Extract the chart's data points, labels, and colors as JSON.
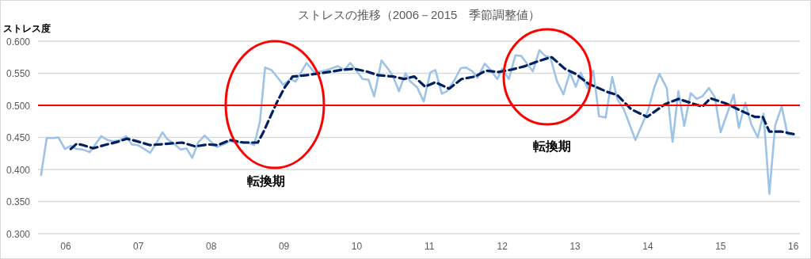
{
  "chart_data": {
    "type": "line",
    "title": "ストレスの推移（2006－2015　季節調整値）",
    "ylabel": "ストレス度",
    "xlim": [
      2005.62,
      2016.09
    ],
    "xticks": [
      {
        "value": 2006,
        "label": "06"
      },
      {
        "value": 2007,
        "label": "07"
      },
      {
        "value": 2008,
        "label": "08"
      },
      {
        "value": 2009,
        "label": "09"
      },
      {
        "value": 2010,
        "label": "10"
      },
      {
        "value": 2011,
        "label": "11"
      },
      {
        "value": 2012,
        "label": "12"
      },
      {
        "value": 2013,
        "label": "13"
      },
      {
        "value": 2014,
        "label": "14"
      },
      {
        "value": 2015,
        "label": "15"
      },
      {
        "value": 2016,
        "label": "16"
      }
    ],
    "ylim": [
      0.3,
      0.6
    ],
    "yticks": [
      {
        "value": 0.3,
        "label": "0.300"
      },
      {
        "value": 0.35,
        "label": "0.350"
      },
      {
        "value": 0.4,
        "label": "0.400"
      },
      {
        "value": 0.45,
        "label": "0.450"
      },
      {
        "value": 0.5,
        "label": "0.500"
      },
      {
        "value": 0.55,
        "label": "0.550"
      },
      {
        "value": 0.6,
        "label": "0.600"
      }
    ],
    "grid": "y",
    "series": [
      {
        "color": "#9dc3e6",
        "line_style": "solid",
        "x": [
          2005.66,
          2005.74,
          2005.84,
          2005.9,
          2005.99,
          2006.07,
          2006.15,
          2006.24,
          2006.33,
          2006.4,
          2006.49,
          2006.57,
          2006.65,
          2006.75,
          2006.83,
          2006.91,
          2006.99,
          2007.08,
          2007.16,
          2007.24,
          2007.33,
          2007.4,
          2007.49,
          2007.58,
          2007.66,
          2007.74,
          2007.82,
          2007.91,
          2007.99,
          2008.08,
          2008.17,
          2008.26,
          2008.34,
          2008.43,
          2008.52,
          2008.59,
          2008.67,
          2008.74,
          2008.83,
          2008.9,
          2008.99,
          2009.09,
          2009.16,
          2009.31,
          2009.42,
          2009.59,
          2009.74,
          2009.83,
          2009.91,
          2009.99,
          2010.08,
          2010.16,
          2010.24,
          2010.34,
          2010.43,
          2010.5,
          2010.58,
          2010.67,
          2010.73,
          2010.83,
          2010.92,
          2011.01,
          2011.08,
          2011.17,
          2011.24,
          2011.33,
          2011.43,
          2011.5,
          2011.59,
          2011.66,
          2011.76,
          2011.84,
          2011.93,
          2012.0,
          2012.09,
          2012.18,
          2012.26,
          2012.42,
          2012.51,
          2012.59,
          2012.66,
          2012.75,
          2012.84,
          2012.93,
          2013.01,
          2013.08,
          2013.17,
          2013.25,
          2013.33,
          2013.42,
          2013.51,
          2013.58,
          2013.67,
          2013.83,
          2014.0,
          2014.09,
          2014.16,
          2014.26,
          2014.34,
          2014.42,
          2014.5,
          2014.59,
          2014.67,
          2014.75,
          2014.84,
          2014.92,
          2015.0,
          2015.09,
          2015.18,
          2015.25,
          2015.34,
          2015.42,
          2015.51,
          2015.59,
          2015.67,
          2015.75,
          2015.84,
          2015.92,
          2016.01
        ],
        "values": [
          0.39,
          0.449,
          0.449,
          0.45,
          0.432,
          0.437,
          0.432,
          0.431,
          0.427,
          0.438,
          0.452,
          0.446,
          0.444,
          0.446,
          0.452,
          0.439,
          0.438,
          0.432,
          0.426,
          0.44,
          0.458,
          0.447,
          0.44,
          0.431,
          0.433,
          0.418,
          0.442,
          0.453,
          0.444,
          0.435,
          0.439,
          0.445,
          0.441,
          0.443,
          0.442,
          0.438,
          0.475,
          0.559,
          0.555,
          0.545,
          0.532,
          0.541,
          0.537,
          0.566,
          0.551,
          0.555,
          0.561,
          0.555,
          0.566,
          0.555,
          0.541,
          0.54,
          0.514,
          0.57,
          0.557,
          0.545,
          0.522,
          0.55,
          0.538,
          0.528,
          0.506,
          0.551,
          0.555,
          0.518,
          0.522,
          0.537,
          0.558,
          0.559,
          0.553,
          0.543,
          0.565,
          0.555,
          0.541,
          0.557,
          0.541,
          0.578,
          0.577,
          0.553,
          0.586,
          0.577,
          0.575,
          0.538,
          0.517,
          0.551,
          0.529,
          0.551,
          0.527,
          0.554,
          0.483,
          0.481,
          0.544,
          0.51,
          0.494,
          0.446,
          0.491,
          0.528,
          0.549,
          0.527,
          0.443,
          0.522,
          0.468,
          0.519,
          0.51,
          0.514,
          0.527,
          0.513,
          0.458,
          0.487,
          0.517,
          0.465,
          0.504,
          0.471,
          0.45,
          0.487,
          0.362,
          0.469,
          0.498,
          0.455,
          0.454
        ]
      },
      {
        "color": "#002060",
        "line_style": "dashed",
        "x": [
          2006.07,
          2006.15,
          2006.24,
          2006.38,
          2006.53,
          2006.71,
          2006.84,
          2006.98,
          2007.16,
          2007.38,
          2007.6,
          2007.78,
          2007.96,
          2008.09,
          2008.26,
          2008.44,
          2008.64,
          2008.72,
          2008.8,
          2008.9,
          2009.01,
          2009.12,
          2009.31,
          2009.56,
          2009.78,
          2009.96,
          2010.13,
          2010.29,
          2010.5,
          2010.65,
          2010.79,
          2010.94,
          2011.08,
          2011.27,
          2011.44,
          2011.63,
          2011.77,
          2011.95,
          2012.14,
          2012.31,
          2012.5,
          2012.61,
          2012.68,
          2012.86,
          2013.01,
          2013.18,
          2013.44,
          2013.58,
          2013.77,
          2013.99,
          2014.24,
          2014.42,
          2014.75,
          2014.86,
          2015.07,
          2015.33,
          2015.47,
          2015.58,
          2015.67,
          2015.84,
          2016.01
        ],
        "values": [
          0.432,
          0.44,
          0.438,
          0.433,
          0.438,
          0.443,
          0.448,
          0.444,
          0.438,
          0.44,
          0.442,
          0.436,
          0.439,
          0.438,
          0.446,
          0.442,
          0.442,
          0.459,
          0.479,
          0.504,
          0.528,
          0.545,
          0.547,
          0.551,
          0.555,
          0.557,
          0.553,
          0.547,
          0.545,
          0.541,
          0.545,
          0.529,
          0.536,
          0.526,
          0.541,
          0.545,
          0.554,
          0.552,
          0.556,
          0.561,
          0.569,
          0.573,
          0.575,
          0.557,
          0.549,
          0.534,
          0.521,
          0.516,
          0.494,
          0.482,
          0.502,
          0.51,
          0.498,
          0.511,
          0.503,
          0.489,
          0.482,
          0.482,
          0.459,
          0.459,
          0.455
        ]
      }
    ],
    "ref_lines": [
      {
        "axis": "y",
        "value": 0.5,
        "color": "#ff0000"
      }
    ],
    "annotations": [
      "転換期",
      "転換期"
    ]
  }
}
